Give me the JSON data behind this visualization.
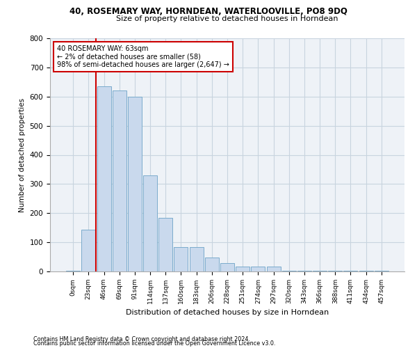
{
  "title1": "40, ROSEMARY WAY, HORNDEAN, WATERLOOVILLE, PO8 9DQ",
  "title2": "Size of property relative to detached houses in Horndean",
  "xlabel": "Distribution of detached houses by size in Horndean",
  "ylabel": "Number of detached properties",
  "bar_color": "#c9d9ed",
  "bar_edge_color": "#7aabcc",
  "grid_color": "#c8d4df",
  "background_color": "#eef2f7",
  "categories": [
    "0sqm",
    "23sqm",
    "46sqm",
    "69sqm",
    "91sqm",
    "114sqm",
    "137sqm",
    "160sqm",
    "183sqm",
    "206sqm",
    "228sqm",
    "251sqm",
    "274sqm",
    "297sqm",
    "320sqm",
    "343sqm",
    "366sqm",
    "388sqm",
    "411sqm",
    "434sqm",
    "457sqm"
  ],
  "values": [
    2,
    143,
    635,
    620,
    600,
    330,
    185,
    83,
    83,
    47,
    28,
    17,
    17,
    17,
    2,
    2,
    2,
    2,
    2,
    2,
    2
  ],
  "annotation_text": "40 ROSEMARY WAY: 63sqm\n← 2% of detached houses are smaller (58)\n98% of semi-detached houses are larger (2,647) →",
  "annotation_box_color": "#ffffff",
  "annotation_box_edge": "#cc0000",
  "vline_color": "#cc0000",
  "vline_x": 1.5,
  "ylim": [
    0,
    800
  ],
  "yticks": [
    0,
    100,
    200,
    300,
    400,
    500,
    600,
    700,
    800
  ],
  "footnote1": "Contains HM Land Registry data © Crown copyright and database right 2024.",
  "footnote2": "Contains public sector information licensed under the Open Government Licence v3.0."
}
